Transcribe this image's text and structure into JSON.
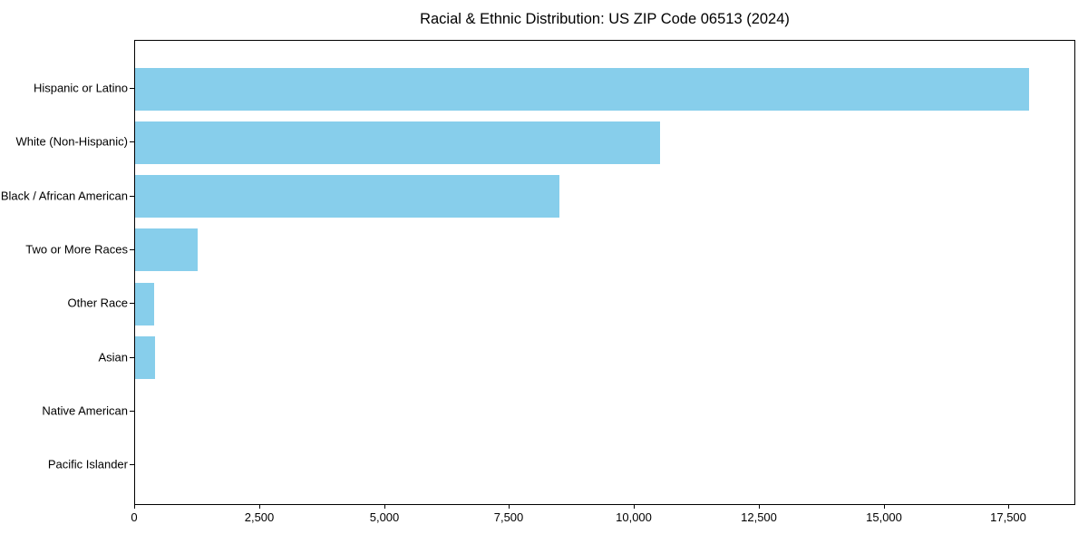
{
  "chart_data": {
    "type": "bar",
    "orientation": "horizontal",
    "title": "Racial & Ethnic Distribution: US ZIP Code 06513 (2024)",
    "categories": [
      "Hispanic or Latino",
      "White (Non-Hispanic)",
      "Black / African American",
      "Two or More Races",
      "Other Race",
      "Asian",
      "Native American",
      "Pacific Islander"
    ],
    "values": [
      17900,
      10500,
      8500,
      1250,
      390,
      400,
      0,
      0
    ],
    "xlabel": "",
    "ylabel": "",
    "xlim": [
      0,
      18800
    ],
    "xticks": {
      "values": [
        0,
        2500,
        5000,
        7500,
        10000,
        12500,
        15000,
        17500
      ],
      "labels": [
        "0",
        "2,500",
        "5,000",
        "7,500",
        "10,000",
        "12,500",
        "15,000",
        "17,500"
      ]
    },
    "grid": false,
    "legend": false,
    "bar_color": "#87CEEB",
    "axis_color": "#000000",
    "text_color": "#000000",
    "background_color": "#FFFFFF"
  }
}
